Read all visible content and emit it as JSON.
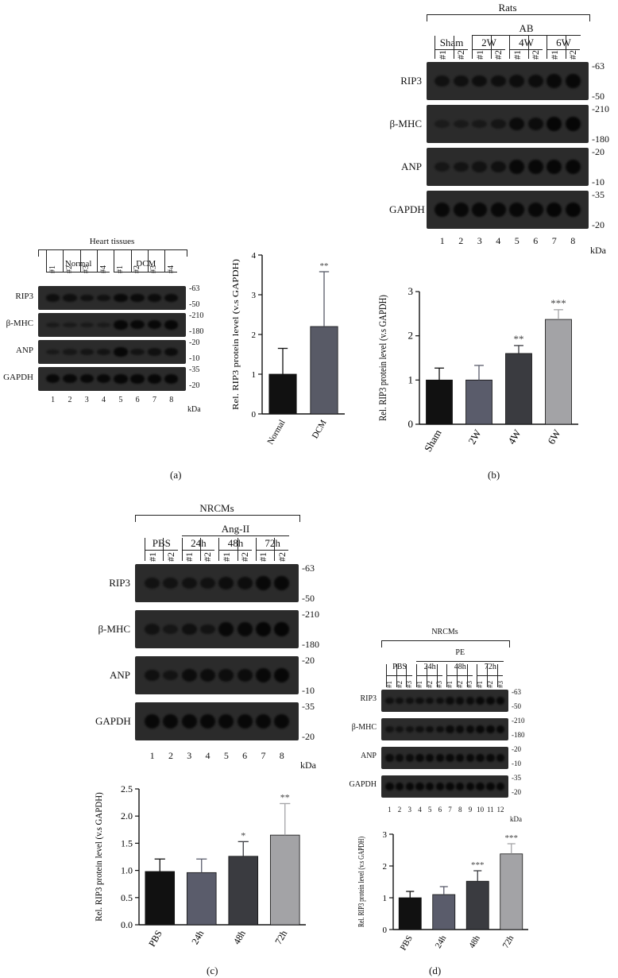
{
  "captions": {
    "a": "(a)",
    "b": "(b)",
    "c": "(c)",
    "d": "(d)"
  },
  "kda_label": "kDa",
  "panel_a": {
    "blot": {
      "title": "Heart tissues",
      "groups": [
        "Normal",
        "DCM"
      ],
      "lane_headers": [
        "#1",
        "#2",
        "#3",
        "#4",
        "#1",
        "#2",
        "#3",
        "#4"
      ],
      "rows": [
        {
          "label": "RIP3",
          "mw": [
            "-63",
            "-50"
          ]
        },
        {
          "label": "β-MHC",
          "mw": [
            "-210",
            "-180"
          ]
        },
        {
          "label": "ANP",
          "mw": [
            "-20",
            "-10"
          ]
        },
        {
          "label": "GAPDH",
          "mw": [
            "-35",
            "-20"
          ]
        }
      ],
      "lane_numbers": [
        "1",
        "2",
        "3",
        "4",
        "5",
        "6",
        "7",
        "8"
      ]
    }
  },
  "panel_b": {
    "blot": {
      "title": "Rats",
      "subtitle": "AB",
      "groups": [
        "Sham",
        "2W",
        "4W",
        "6W"
      ],
      "lane_headers": [
        "#1",
        "#2",
        "#1",
        "#2",
        "#1",
        "#2",
        "#1",
        "#2"
      ],
      "rows": [
        {
          "label": "RIP3",
          "mw": [
            "-63",
            "-50"
          ]
        },
        {
          "label": "β-MHC",
          "mw": [
            "-210",
            "-180"
          ]
        },
        {
          "label": "ANP",
          "mw": [
            "-20",
            "-10"
          ]
        },
        {
          "label": "GAPDH",
          "mw": [
            "-35",
            "-20"
          ]
        }
      ],
      "lane_numbers": [
        "1",
        "2",
        "3",
        "4",
        "5",
        "6",
        "7",
        "8"
      ]
    }
  },
  "panel_c": {
    "blot": {
      "title": "NRCMs",
      "subtitle": "Ang-II",
      "groups": [
        "PBS",
        "24h",
        "48h",
        "72h"
      ],
      "lane_headers": [
        "#1",
        "#2",
        "#1",
        "#2",
        "#1",
        "#2",
        "#1",
        "#2"
      ],
      "rows": [
        {
          "label": "RIP3",
          "mw": [
            "-63",
            "-50"
          ]
        },
        {
          "label": "β-MHC",
          "mw": [
            "-210",
            "-180"
          ]
        },
        {
          "label": "ANP",
          "mw": [
            "-20",
            "-10"
          ]
        },
        {
          "label": "GAPDH",
          "mw": [
            "-35",
            "-20"
          ]
        }
      ],
      "lane_numbers": [
        "1",
        "2",
        "3",
        "4",
        "5",
        "6",
        "7",
        "8"
      ]
    }
  },
  "panel_d": {
    "blot": {
      "title": "NRCMs",
      "subtitle": "PE",
      "groups": [
        "PBS",
        "24h",
        "48h",
        "72h"
      ],
      "lane_headers": [
        "#1",
        "#2",
        "#3",
        "#1",
        "#2",
        "#3",
        "#1",
        "#2",
        "#3",
        "#1",
        "#2",
        "#3"
      ],
      "rows": [
        {
          "label": "RIP3",
          "mw": [
            "-63",
            "-50"
          ]
        },
        {
          "label": "β-MHC",
          "mw": [
            "-210",
            "-180"
          ]
        },
        {
          "label": "ANP",
          "mw": [
            "-20",
            "-10"
          ]
        },
        {
          "label": "GAPDH",
          "mw": [
            "-35",
            "-20"
          ]
        }
      ],
      "lane_numbers": [
        "1",
        "2",
        "3",
        "4",
        "5",
        "6",
        "7",
        "8",
        "9",
        "10",
        "11",
        "12"
      ]
    }
  },
  "chart_data": [
    {
      "panel": "a",
      "type": "bar",
      "ylabel": "Rel. RIP3 protein level (v.s GAPDH)",
      "categories": [
        "Normal",
        "DCM"
      ],
      "values": [
        1.0,
        2.2
      ],
      "errors": [
        0.65,
        1.38
      ],
      "significance": [
        "",
        "**"
      ],
      "ylim": [
        0,
        4
      ],
      "yticks": [
        "0",
        "1",
        "2",
        "3",
        "4"
      ],
      "colors": [
        "#111111",
        "#585a66"
      ]
    },
    {
      "panel": "b",
      "type": "bar",
      "ylabel": "Rel. RIP3 protein level (v.s GAPDH)",
      "categories": [
        "Sham",
        "2W",
        "4W",
        "6W"
      ],
      "values": [
        1.0,
        1.0,
        1.6,
        2.37
      ],
      "errors": [
        0.27,
        0.33,
        0.18,
        0.22
      ],
      "significance": [
        "",
        "",
        "**",
        "***"
      ],
      "ylim": [
        0,
        3
      ],
      "yticks": [
        "0",
        "1",
        "2",
        "3"
      ],
      "colors": [
        "#111111",
        "#5a5c6b",
        "#3a3b40",
        "#a3a3a6"
      ]
    },
    {
      "panel": "c",
      "type": "bar",
      "ylabel": "Rel. RIP3 protein level (v.s GAPDH)",
      "categories": [
        "PBS",
        "24h",
        "48h",
        "72h"
      ],
      "values": [
        0.98,
        0.96,
        1.26,
        1.65
      ],
      "errors": [
        0.23,
        0.25,
        0.27,
        0.58
      ],
      "significance": [
        "",
        "",
        "*",
        "**"
      ],
      "ylim": [
        0,
        2.5
      ],
      "yticks": [
        "0.0",
        "0.5",
        "1.0",
        "1.5",
        "2.0",
        "2.5"
      ],
      "colors": [
        "#111111",
        "#5a5c6b",
        "#3a3b40",
        "#a3a3a6"
      ]
    },
    {
      "panel": "d",
      "type": "bar",
      "ylabel": "Rel. RIP3 protein level (v.s GAPDH)",
      "categories": [
        "PBS",
        "24h",
        "48h",
        "72h"
      ],
      "values": [
        1.0,
        1.1,
        1.52,
        2.38
      ],
      "errors": [
        0.2,
        0.25,
        0.33,
        0.32
      ],
      "significance": [
        "",
        "",
        "***",
        "***"
      ],
      "ylim": [
        0,
        3
      ],
      "yticks": [
        "0",
        "1",
        "2",
        "3"
      ],
      "colors": [
        "#111111",
        "#5a5c6b",
        "#3a3b40",
        "#a3a3a6"
      ]
    }
  ]
}
